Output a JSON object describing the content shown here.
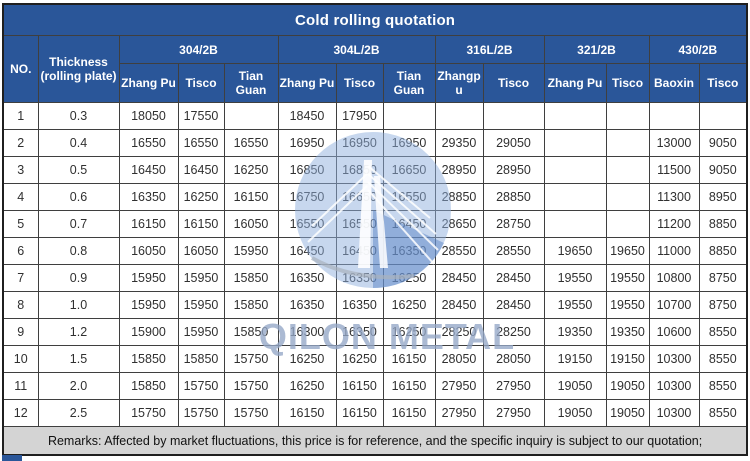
{
  "title": "Cold rolling quotation",
  "colors": {
    "header_blue": "#2A5699",
    "remarks_bg": "#d4d4d4",
    "grid": "#3f3f3f",
    "watermark_blue": "#94a7c6"
  },
  "table": {
    "corner": {
      "no": "NO.",
      "thickness": "Thickness (rolling plate)"
    },
    "groups": [
      {
        "label": "304/2B"
      },
      {
        "label": "304L/2B"
      },
      {
        "label": "316L/2B"
      },
      {
        "label": "321/2B"
      },
      {
        "label": "430/2B"
      }
    ],
    "suppliers": [
      "Zhang Pu",
      "Tisco",
      "Tian Guan",
      "Zhang Pu",
      "Tisco",
      "Tian Guan",
      "Zhangpu",
      "Tisco",
      "Zhang Pu",
      "Tisco",
      "Baoxin",
      "Tisco"
    ],
    "rows": [
      {
        "no": "1",
        "thickness": "0.3",
        "prices": [
          "18050",
          "17550",
          "",
          "18450",
          "17950",
          "",
          "",
          "",
          "",
          "",
          "",
          ""
        ]
      },
      {
        "no": "2",
        "thickness": "0.4",
        "prices": [
          "16550",
          "16550",
          "16550",
          "16950",
          "16950",
          "16950",
          "29350",
          "29050",
          "",
          "",
          "13000",
          "9050"
        ]
      },
      {
        "no": "3",
        "thickness": "0.5",
        "prices": [
          "16450",
          "16450",
          "16250",
          "16850",
          "16850",
          "16650",
          "28950",
          "28950",
          "",
          "",
          "11500",
          "9050"
        ]
      },
      {
        "no": "4",
        "thickness": "0.6",
        "prices": [
          "16350",
          "16250",
          "16150",
          "16750",
          "16650",
          "16550",
          "28850",
          "28850",
          "",
          "",
          "11300",
          "8950"
        ]
      },
      {
        "no": "5",
        "thickness": "0.7",
        "prices": [
          "16150",
          "16150",
          "16050",
          "16550",
          "16550",
          "16450",
          "28650",
          "28750",
          "",
          "",
          "11200",
          "8850"
        ]
      },
      {
        "no": "6",
        "thickness": "0.8",
        "prices": [
          "16050",
          "16050",
          "15950",
          "16450",
          "16450",
          "16350",
          "28550",
          "28550",
          "19650",
          "19650",
          "11000",
          "8850"
        ]
      },
      {
        "no": "7",
        "thickness": "0.9",
        "prices": [
          "15950",
          "15950",
          "15850",
          "16350",
          "16350",
          "16250",
          "28450",
          "28450",
          "19550",
          "19550",
          "10800",
          "8750"
        ]
      },
      {
        "no": "8",
        "thickness": "1.0",
        "prices": [
          "15950",
          "15950",
          "15850",
          "16350",
          "16350",
          "16250",
          "28450",
          "28450",
          "19550",
          "19550",
          "10700",
          "8750"
        ]
      },
      {
        "no": "9",
        "thickness": "1.2",
        "prices": [
          "15900",
          "15950",
          "15850",
          "16300",
          "16350",
          "16250",
          "28250",
          "28250",
          "19350",
          "19350",
          "10600",
          "8550"
        ]
      },
      {
        "no": "10",
        "thickness": "1.5",
        "prices": [
          "15850",
          "15850",
          "15750",
          "16250",
          "16250",
          "16150",
          "28050",
          "28050",
          "19150",
          "19150",
          "10300",
          "8550"
        ]
      },
      {
        "no": "11",
        "thickness": "2.0",
        "prices": [
          "15850",
          "15750",
          "15750",
          "16250",
          "16150",
          "16150",
          "27950",
          "27950",
          "19050",
          "19050",
          "10300",
          "8550"
        ]
      },
      {
        "no": "12",
        "thickness": "2.5",
        "prices": [
          "15750",
          "15750",
          "15750",
          "16150",
          "16150",
          "16150",
          "27950",
          "27950",
          "19050",
          "19050",
          "10300",
          "8550"
        ]
      }
    ]
  },
  "remarks": "Remarks: Affected by market fluctuations, this price is for reference, and the specific inquiry is subject to our quotation;",
  "watermark": {
    "text": "QILON METAL"
  }
}
